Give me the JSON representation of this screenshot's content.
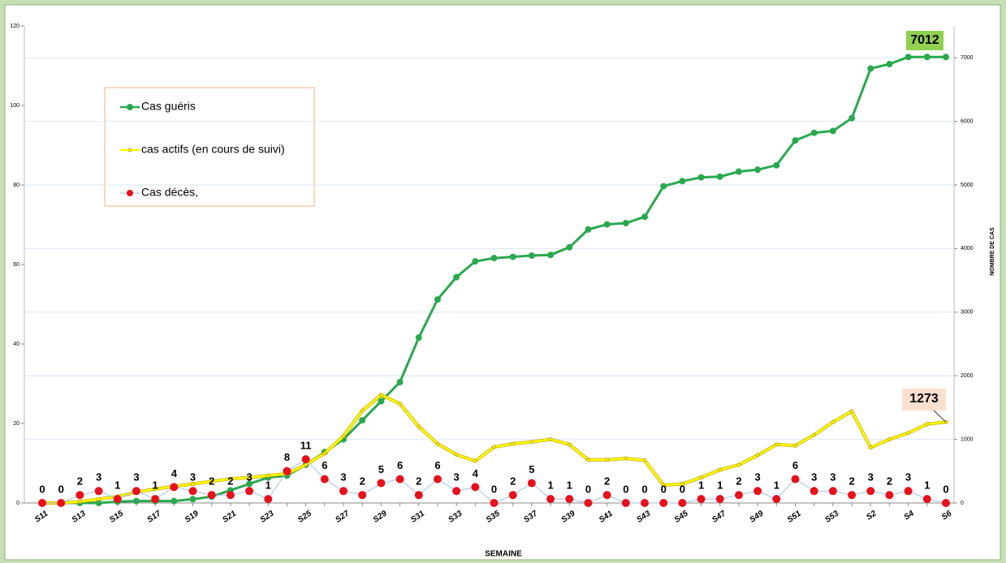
{
  "chart_data": {
    "type": "line",
    "x_label": "SEMAINE",
    "y2_label": "NOMBRE DE CAS",
    "categories": [
      "S11",
      null,
      "S13",
      null,
      "S15",
      null,
      "S17",
      null,
      "S19",
      null,
      "S21",
      null,
      "S23",
      null,
      "S25",
      null,
      "S27",
      null,
      "S29",
      null,
      "S31",
      null,
      "S33",
      null,
      "S35",
      null,
      "S37",
      null,
      "S39",
      null,
      "S41",
      null,
      "S43",
      null,
      "S45",
      null,
      "S47",
      null,
      "S49",
      null,
      "S51",
      null,
      "S53",
      null,
      "S2",
      null,
      "S4",
      null,
      "S6"
    ],
    "ylim": [
      0,
      120
    ],
    "yticks": [
      0,
      20,
      40,
      60,
      80,
      100,
      120
    ],
    "y2lim": [
      0,
      7500
    ],
    "y2ticks": [
      0,
      1000,
      2000,
      3000,
      4000,
      5000,
      6000,
      7000
    ],
    "grid": true,
    "series": [
      {
        "name": "Cas guéris",
        "color": "#2aa84f",
        "axis": "y2",
        "values": [
          0,
          0,
          0,
          0,
          20,
          30,
          30,
          30,
          60,
          100,
          200,
          300,
          400,
          430,
          600,
          800,
          1000,
          1300,
          1600,
          1900,
          2600,
          3200,
          3550,
          3800,
          3850,
          3870,
          3890,
          3900,
          4020,
          4300,
          4380,
          4400,
          4500,
          4980,
          5060,
          5120,
          5130,
          5210,
          5240,
          5310,
          5700,
          5820,
          5850,
          6050,
          6830,
          6900,
          7012,
          7012,
          7012
        ]
      },
      {
        "name": "cas actifs (en cours de suivi)",
        "color": "#ffff00",
        "axis": "y2",
        "values": [
          0,
          0,
          20,
          60,
          100,
          170,
          220,
          260,
          300,
          340,
          380,
          400,
          430,
          460,
          600,
          780,
          1050,
          1450,
          1700,
          1560,
          1200,
          930,
          760,
          660,
          880,
          930,
          960,
          1000,
          920,
          680,
          680,
          700,
          670,
          280,
          300,
          400,
          520,
          600,
          750,
          920,
          900,
          1070,
          1270,
          1440,
          870,
          1000,
          1100,
          1240,
          1273
        ]
      },
      {
        "name": "Cas décès,",
        "color": "#9dc3e6",
        "marker_color": "#e8101a",
        "values": [
          0,
          0,
          2,
          3,
          1,
          3,
          1,
          4,
          3,
          2,
          2,
          3,
          1,
          8,
          11,
          6,
          3,
          2,
          5,
          6,
          2,
          6,
          3,
          4,
          0,
          2,
          5,
          1,
          1,
          0,
          2,
          0,
          0,
          0,
          0,
          1,
          1,
          2,
          3,
          1,
          6,
          3,
          3,
          2,
          3,
          2,
          3,
          1,
          0
        ]
      }
    ]
  }
}
